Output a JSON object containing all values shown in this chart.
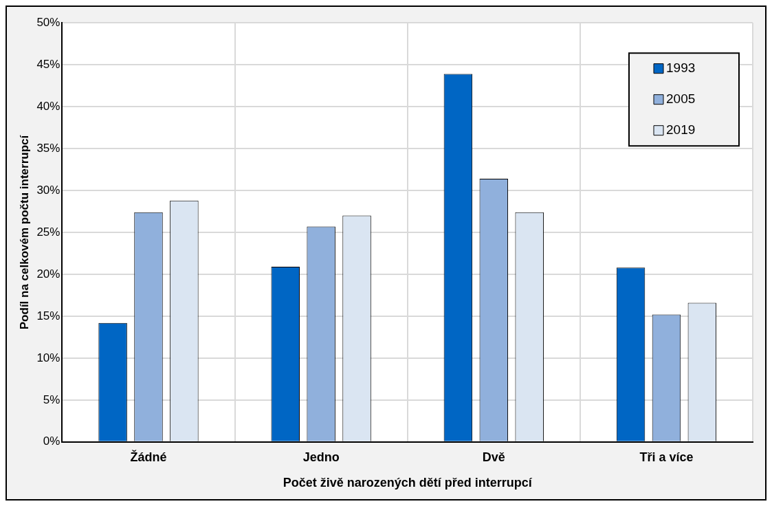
{
  "chart_data": {
    "type": "bar",
    "xlabel": "Počet živě narozených dětí před interrupcí",
    "ylabel": "Podíl na celkovém počtu interrupcí",
    "categories": [
      "Žádné",
      "Jedno",
      "Dvě",
      "Tři a více"
    ],
    "series": [
      {
        "name": "1993",
        "color": "#0066c4",
        "values": [
          14.2,
          20.9,
          43.9,
          20.8
        ]
      },
      {
        "name": "2005",
        "color": "#90b0dc",
        "values": [
          27.4,
          25.7,
          31.4,
          15.2
        ]
      },
      {
        "name": "2019",
        "color": "#dae5f2",
        "values": [
          28.8,
          27.0,
          27.4,
          16.6
        ]
      }
    ],
    "ylim": [
      0,
      50
    ],
    "yticks": [
      {
        "value": 0,
        "label": "0%"
      },
      {
        "value": 5,
        "label": "5%"
      },
      {
        "value": 10,
        "label": "10%"
      },
      {
        "value": 15,
        "label": "15%"
      },
      {
        "value": 20,
        "label": "20%"
      },
      {
        "value": 25,
        "label": "25%"
      },
      {
        "value": 30,
        "label": "30%"
      },
      {
        "value": 35,
        "label": "35%"
      },
      {
        "value": 40,
        "label": "40%"
      },
      {
        "value": 45,
        "label": "45%"
      },
      {
        "value": 50,
        "label": "50%"
      }
    ],
    "grid": true,
    "legend": "top right"
  }
}
